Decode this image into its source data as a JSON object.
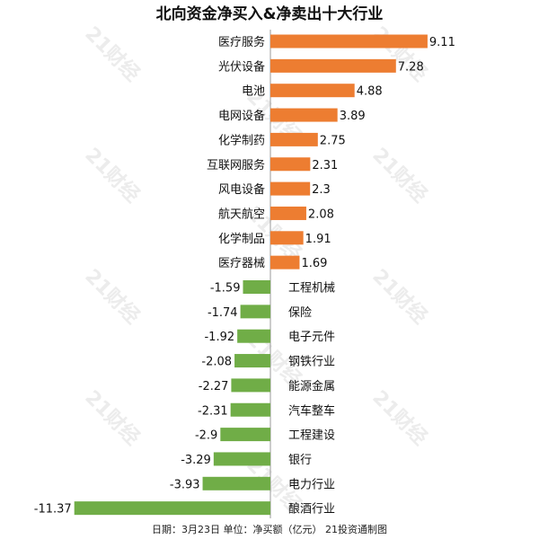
{
  "chart_data": {
    "type": "bar",
    "orientation": "horizontal",
    "title": "北向资金净买入&净卖出十大行业",
    "categories": [
      "医疗服务",
      "光伏设备",
      "电池",
      "电网设备",
      "化学制药",
      "互联网服务",
      "风电设备",
      "航天航空",
      "化学制品",
      "医疗器械",
      "工程机械",
      "保险",
      "电子元件",
      "钢铁行业",
      "能源金属",
      "汽车整车",
      "工程建设",
      "银行",
      "电力行业",
      "酿酒行业"
    ],
    "values": [
      9.11,
      7.28,
      4.88,
      3.89,
      2.75,
      2.31,
      2.3,
      2.08,
      1.91,
      1.69,
      -1.59,
      -1.74,
      -1.92,
      -2.08,
      -2.27,
      -2.31,
      -2.9,
      -3.29,
      -3.93,
      -11.37
    ],
    "value_labels": [
      "9.11",
      "7.28",
      "4.88",
      "3.89",
      "2.75",
      "2.31",
      "2.3",
      "2.08",
      "1.91",
      "1.69",
      "-1.59",
      "-1.74",
      "-1.92",
      "-2.08",
      "-2.27",
      "-2.31",
      "-2.9",
      "-3.29",
      "-3.93",
      "-11.37"
    ],
    "colors": {
      "positive": "#ED7D31",
      "negative": "#70AD47"
    },
    "grid": false,
    "legend": "none",
    "footnote": "日期：3月23日 单位：净买额（亿元） 21投资通制图",
    "watermark": "21财经"
  }
}
